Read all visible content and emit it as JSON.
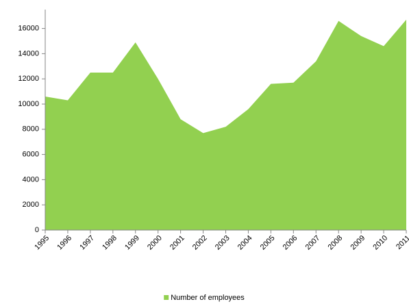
{
  "chart_data": {
    "type": "area",
    "x": [
      1995,
      1996,
      1997,
      1998,
      1999,
      2000,
      2001,
      2002,
      2003,
      2004,
      2005,
      2006,
      2007,
      2008,
      2009,
      2010,
      2011
    ],
    "series": [
      {
        "name": "Number of employees",
        "color": "#92d050",
        "values": [
          10600,
          10300,
          12500,
          12500,
          14900,
          12000,
          8800,
          7700,
          8200,
          9600,
          11600,
          11700,
          13400,
          16600,
          15400,
          14600,
          16700
        ]
      }
    ],
    "xlim": [
      1995,
      2011
    ],
    "ylim": [
      0,
      17500
    ],
    "yticks": [
      0,
      2000,
      4000,
      6000,
      8000,
      10000,
      12000,
      14000,
      16000
    ],
    "legend": "bottom"
  }
}
